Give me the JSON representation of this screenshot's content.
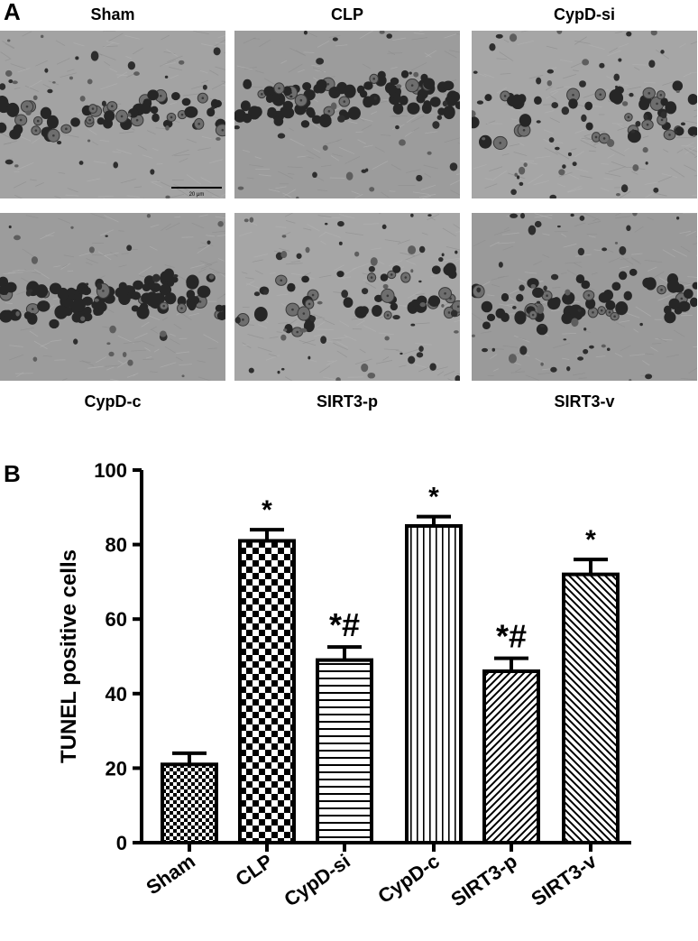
{
  "panel_a": {
    "letter": "A",
    "scale_bar_label": "20 μm",
    "images": [
      {
        "label": "Sham",
        "style": "sparse-light"
      },
      {
        "label": "CLP",
        "style": "dense-dark"
      },
      {
        "label": "CypD-si",
        "style": "medium-light"
      },
      {
        "label": "CypD-c",
        "style": "dense-dark"
      },
      {
        "label": "SIRT3-p",
        "style": "medium-light"
      },
      {
        "label": "SIRT3-v",
        "style": "medium-dark"
      }
    ]
  },
  "panel_b": {
    "letter": "B"
  },
  "chart_data": {
    "type": "bar",
    "title": "",
    "xlabel": "",
    "ylabel": "TUNEL positive cells",
    "ylim": [
      0,
      100
    ],
    "yticks": [
      "0",
      "20",
      "40",
      "60",
      "80",
      "100"
    ],
    "categories": [
      "Sham",
      "CLP",
      "CypD-si",
      "CypD-c",
      "SIRT3-p",
      "SIRT3-v"
    ],
    "values": [
      21,
      81,
      49,
      85,
      46,
      72
    ],
    "errors": [
      3,
      3,
      3.5,
      2.5,
      3.5,
      4
    ],
    "annotations": [
      "",
      "*",
      "*#",
      "*",
      "*#",
      "*"
    ],
    "patterns": [
      "small-checker",
      "large-checker",
      "horizontal-lines",
      "vertical-lines",
      "diagonal-up",
      "diagonal-down"
    ],
    "grid": false,
    "legend": "none"
  }
}
